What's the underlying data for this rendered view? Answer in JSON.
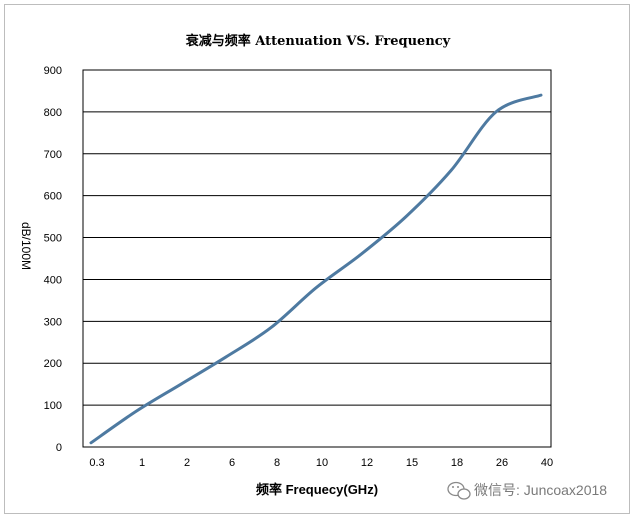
{
  "chart_data": {
    "type": "line",
    "title": "衰减与频率 Attenuation VS. Frequency",
    "xlabel": "频率 Frequecy(GHz)",
    "ylabel": "dB/100M",
    "x_tick_labels": [
      "0.3",
      "1",
      "2",
      "6",
      "8",
      "10",
      "12",
      "15",
      "18",
      "26",
      "40"
    ],
    "y_tick_labels": [
      "0",
      "100",
      "200",
      "300",
      "400",
      "500",
      "600",
      "700",
      "800",
      "900"
    ],
    "ylim": [
      0,
      900
    ],
    "grid": "horizontal",
    "legend": "none",
    "series": [
      {
        "x": [
          "0.3",
          "1",
          "2",
          "6",
          "8",
          "10",
          "12",
          "15",
          "18",
          "26",
          "40"
        ],
        "values": [
          10,
          85,
          150,
          215,
          285,
          380,
          460,
          550,
          660,
          800,
          840
        ],
        "color": "#4e7aa1"
      }
    ]
  },
  "watermark": {
    "icon": "wechat-icon",
    "text": "微信号: Juncoax2018"
  }
}
